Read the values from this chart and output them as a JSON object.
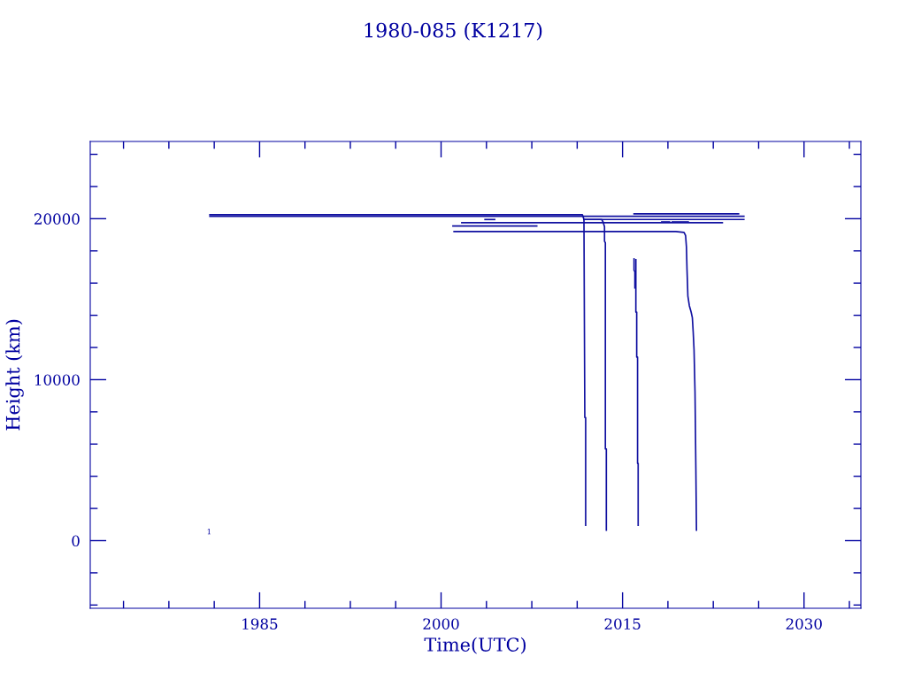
{
  "chart_data": {
    "type": "line",
    "title": "1980-085 (K1217)",
    "xlabel": "Time(UTC)",
    "ylabel": "Height (km)",
    "xlim": [
      1971,
      2034.7
    ],
    "ylim": [
      -4200,
      24800
    ],
    "xticks": [
      {
        "value": 1973.75,
        "label": null
      },
      {
        "value": 1977.5,
        "label": null
      },
      {
        "value": 1981.25,
        "label": null
      },
      1985,
      {
        "value": 1988.75,
        "label": null
      },
      {
        "value": 1992.5,
        "label": null
      },
      {
        "value": 1996.25,
        "label": null
      },
      2000,
      {
        "value": 2003.75,
        "label": null
      },
      {
        "value": 2007.5,
        "label": null
      },
      {
        "value": 2011.25,
        "label": null
      },
      2015,
      {
        "value": 2018.75,
        "label": null
      },
      {
        "value": 2022.5,
        "label": null
      },
      {
        "value": 2026.25,
        "label": null
      },
      2030,
      {
        "value": 2033.75,
        "label": null
      }
    ],
    "yticks": [
      {
        "value": -4000,
        "label": null
      },
      {
        "value": -2000,
        "label": null
      },
      0,
      {
        "value": 2000,
        "label": null
      },
      {
        "value": 4000,
        "label": null
      },
      {
        "value": 6000,
        "label": null
      },
      {
        "value": 8000,
        "label": null
      },
      10000,
      {
        "value": 12000,
        "label": null
      },
      {
        "value": 14000,
        "label": null
      },
      {
        "value": 16000,
        "label": null
      },
      {
        "value": 18000,
        "label": null
      },
      20000,
      {
        "value": 22000,
        "label": null
      },
      {
        "value": 24000,
        "label": null
      }
    ],
    "grid": false,
    "legend": false,
    "line_style": "solid",
    "marker": "none",
    "annotations": [
      "1"
    ],
    "series": [
      {
        "color": "#1010a0",
        "x": [
          1980.89,
          2011.68,
          2011.81,
          2011.88,
          2011.95,
          2011.95
        ],
        "values": [
          20250,
          20250,
          19950,
          7650,
          7650,
          950
        ]
      },
      {
        "color": "#1010a0",
        "x": [
          1980.89,
          2025.03
        ],
        "values": [
          20150,
          20150
        ]
      },
      {
        "color": "#1010a0",
        "x": [
          2011.81,
          2025.03
        ],
        "values": [
          19950,
          19950
        ]
      },
      {
        "color": "#1010a0",
        "x": [
          2003.63,
          2004.43
        ],
        "values": [
          19950,
          19950
        ]
      },
      {
        "color": "#1010a0",
        "x": [
          2011.81,
          2013.27,
          2013.39,
          2013.51,
          2013.51,
          2013.58,
          2013.58,
          2013.66,
          2013.66
        ],
        "values": [
          19950,
          19950,
          19800,
          19500,
          18600,
          18500,
          5700,
          5700,
          650
        ]
      },
      {
        "color": "#1010a0",
        "x": [
          2001.71,
          2023.25
        ],
        "values": [
          19750,
          19750
        ]
      },
      {
        "color": "#1010a0",
        "x": [
          2000.98,
          2007.91
        ],
        "values": [
          19550,
          19550
        ]
      },
      {
        "color": "#1010a0",
        "x": [
          2001.07,
          2019.4,
          2020.08,
          2020.21,
          2020.28,
          2020.33,
          2020.4,
          2020.52,
          2020.67,
          2020.77,
          2020.84,
          2020.91,
          2020.99,
          2021.06,
          2021.11
        ],
        "values": [
          19200,
          19200,
          19150,
          18950,
          18250,
          16800,
          15200,
          14600,
          14200,
          13850,
          12950,
          11850,
          9200,
          4500,
          650
        ]
      },
      {
        "color": "#1010a0",
        "x": [
          2015.95,
          2024.59
        ],
        "values": [
          20300,
          20300
        ]
      },
      {
        "color": "#1010a0",
        "x": [
          2018.24,
          2018.89
        ],
        "values": [
          19800,
          19800
        ]
      },
      {
        "color": "#1010a0",
        "x": [
          2019.11,
          2020.43
        ],
        "values": [
          19800,
          19800
        ]
      },
      {
        "color": "#1010a0",
        "x": [
          2015.95,
          2015.95,
          2016.02,
          2016.02
        ],
        "values": [
          17500,
          16800,
          16700,
          15700
        ]
      },
      {
        "color": "#1010a0",
        "x": [
          2016.1,
          2016.1,
          2016.17,
          2016.17,
          2016.24,
          2016.24,
          2016.29,
          2016.29
        ],
        "values": [
          17450,
          14200,
          14200,
          11400,
          11400,
          4800,
          4800,
          950
        ]
      }
    ]
  }
}
